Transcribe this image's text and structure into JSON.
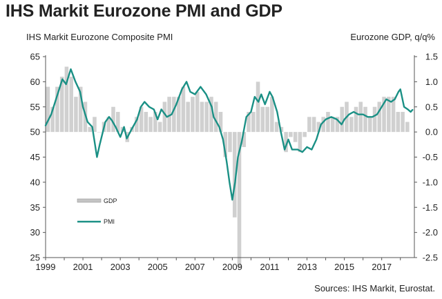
{
  "header": {
    "title": "IHS Markit Eurozone PMI and GDP",
    "left_axis_title": "IHS Markit Eurozone Composite  PMI",
    "right_axis_title": "Eurozone GDP, q/q%",
    "source": "Sources: IHS Markit, Eurostat."
  },
  "colors": {
    "pmi": "#1a9085",
    "gdp": "#d0d0d0",
    "axis": "#555555"
  },
  "chart_data": {
    "type": "bar+line",
    "x_tick_labels": [
      "1999",
      "2001",
      "2003",
      "2005",
      "2007",
      "2009",
      "2011",
      "2013",
      "2015",
      "2017"
    ],
    "left_axis": {
      "ylim": [
        25,
        65
      ],
      "ticks": [
        "65",
        "60",
        "55",
        "50",
        "45",
        "40",
        "35",
        "30",
        "25"
      ]
    },
    "right_axis": {
      "ylim": [
        -2.5,
        1.5
      ],
      "ticks": [
        "1.5",
        "1.0",
        "0.5",
        "0.0",
        "-0.5",
        "-1.0",
        "-1.5",
        "-2.0",
        "-2.5"
      ]
    },
    "legend": [
      {
        "name": "GDP",
        "style": "bar"
      },
      {
        "name": "PMI",
        "style": "line"
      }
    ],
    "xlim": [
      1999.0,
      2018.75
    ],
    "series": [
      {
        "name": "GDP",
        "type": "bar",
        "axis": "right",
        "quarters_start": "1999Q1",
        "values": [
          0.9,
          0.5,
          0.9,
          1.1,
          1.3,
          1.1,
          0.7,
          0.9,
          0.6,
          0.1,
          0.3,
          0.0,
          0.2,
          0.3,
          0.5,
          0.4,
          0.1,
          -0.2,
          0.1,
          0.3,
          0.5,
          0.4,
          0.3,
          0.4,
          0.2,
          0.6,
          0.7,
          0.7,
          0.7,
          0.9,
          0.6,
          0.7,
          0.8,
          0.6,
          0.6,
          0.7,
          0.6,
          0.4,
          -0.5,
          -0.4,
          -1.7,
          -2.7,
          -0.3,
          0.4,
          0.4,
          1.0,
          0.5,
          0.5,
          0.7,
          0.2,
          0.1,
          -0.4,
          -0.1,
          -0.2,
          -0.4,
          -0.1,
          0.3,
          0.3,
          0.2,
          0.3,
          0.4,
          0.3,
          0.3,
          0.5,
          0.6,
          0.3,
          0.5,
          0.6,
          0.5,
          0.3,
          0.5,
          0.6,
          0.7,
          0.7,
          0.7,
          0.4,
          0.4,
          0.2
        ]
      },
      {
        "name": "PMI",
        "type": "line",
        "axis": "left",
        "points": [
          [
            1999.0,
            51.3
          ],
          [
            1999.3,
            53.5
          ],
          [
            1999.6,
            57.0
          ],
          [
            1999.9,
            60.5
          ],
          [
            2000.1,
            59.5
          ],
          [
            2000.35,
            62.5
          ],
          [
            2000.6,
            60.0
          ],
          [
            2000.85,
            58.0
          ],
          [
            2001.0,
            55.0
          ],
          [
            2001.25,
            52.0
          ],
          [
            2001.5,
            51.0
          ],
          [
            2001.75,
            45.0
          ],
          [
            2001.9,
            47.5
          ],
          [
            2002.2,
            52.0
          ],
          [
            2002.4,
            53.0
          ],
          [
            2002.55,
            52.3
          ],
          [
            2002.75,
            51.0
          ],
          [
            2003.0,
            49.0
          ],
          [
            2003.2,
            51.0
          ],
          [
            2003.35,
            48.7
          ],
          [
            2003.6,
            50.5
          ],
          [
            2003.9,
            52.5
          ],
          [
            2004.1,
            55.0
          ],
          [
            2004.3,
            56.0
          ],
          [
            2004.55,
            55.0
          ],
          [
            2004.8,
            54.5
          ],
          [
            2005.0,
            52.5
          ],
          [
            2005.2,
            54.5
          ],
          [
            2005.5,
            53.0
          ],
          [
            2005.75,
            53.5
          ],
          [
            2006.0,
            55.5
          ],
          [
            2006.3,
            58.5
          ],
          [
            2006.55,
            60.0
          ],
          [
            2006.75,
            58.0
          ],
          [
            2007.0,
            57.5
          ],
          [
            2007.3,
            59.0
          ],
          [
            2007.6,
            57.5
          ],
          [
            2007.9,
            55.0
          ],
          [
            2008.0,
            53.0
          ],
          [
            2008.3,
            51.0
          ],
          [
            2008.5,
            48.5
          ],
          [
            2008.7,
            44.0
          ],
          [
            2008.85,
            40.0
          ],
          [
            2009.0,
            36.5
          ],
          [
            2009.15,
            40.0
          ],
          [
            2009.3,
            45.0
          ],
          [
            2009.5,
            48.0
          ],
          [
            2009.75,
            53.0
          ],
          [
            2010.0,
            54.0
          ],
          [
            2010.2,
            57.0
          ],
          [
            2010.4,
            56.0
          ],
          [
            2010.55,
            57.5
          ],
          [
            2010.75,
            55.5
          ],
          [
            2011.0,
            58.0
          ],
          [
            2011.15,
            57.0
          ],
          [
            2011.4,
            54.0
          ],
          [
            2011.6,
            50.0
          ],
          [
            2011.8,
            46.5
          ],
          [
            2012.0,
            48.5
          ],
          [
            2012.2,
            46.5
          ],
          [
            2012.5,
            46.5
          ],
          [
            2012.75,
            46.0
          ],
          [
            2013.0,
            47.0
          ],
          [
            2013.25,
            46.5
          ],
          [
            2013.5,
            48.5
          ],
          [
            2013.75,
            51.5
          ],
          [
            2014.0,
            52.5
          ],
          [
            2014.3,
            53.0
          ],
          [
            2014.6,
            52.5
          ],
          [
            2014.85,
            51.5
          ],
          [
            2015.0,
            52.5
          ],
          [
            2015.25,
            53.5
          ],
          [
            2015.5,
            54.0
          ],
          [
            2015.75,
            53.5
          ],
          [
            2016.0,
            53.5
          ],
          [
            2016.25,
            53.0
          ],
          [
            2016.5,
            53.0
          ],
          [
            2016.75,
            53.5
          ],
          [
            2017.0,
            55.0
          ],
          [
            2017.25,
            56.5
          ],
          [
            2017.5,
            56.0
          ],
          [
            2017.7,
            56.5
          ],
          [
            2017.9,
            58.0
          ],
          [
            2018.0,
            58.5
          ],
          [
            2018.2,
            55.0
          ],
          [
            2018.4,
            54.5
          ],
          [
            2018.55,
            54.0
          ],
          [
            2018.65,
            54.4
          ]
        ]
      }
    ]
  }
}
